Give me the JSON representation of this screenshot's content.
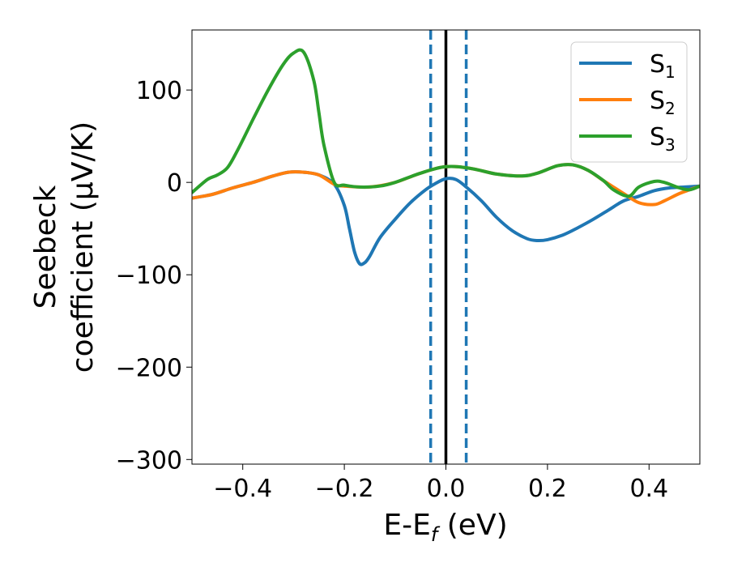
{
  "chart_data": {
    "type": "line",
    "xlabel_main": "E-E",
    "xlabel_sub": "f",
    "xlabel_unit": " (eV)",
    "ylabel_line1": "Seebeck",
    "ylabel_line2": "coefficient  (μV/K)",
    "xlim": [
      -0.5,
      0.5
    ],
    "ylim": [
      -305,
      165
    ],
    "x_ticks": [
      -0.4,
      -0.2,
      0.0,
      0.2,
      0.4
    ],
    "x_tick_labels": [
      "−0.4",
      "−0.2",
      "0.0",
      "0.2",
      "0.4"
    ],
    "y_ticks": [
      -300,
      -200,
      -100,
      0,
      100
    ],
    "y_tick_labels": [
      "−300",
      "−200",
      "−100",
      "0",
      "100"
    ],
    "grid": false,
    "legend_position": "top-right",
    "reference_lines": [
      {
        "x": 0.0,
        "style": "solid",
        "color": "#000000"
      },
      {
        "x": -0.03,
        "style": "dashed",
        "color": "#1f77b4"
      },
      {
        "x": 0.04,
        "style": "dashed",
        "color": "#1f77b4"
      }
    ],
    "series": [
      {
        "name": "S",
        "sub": "1",
        "color": "#1f77b4",
        "x": [
          -0.5,
          -0.46,
          -0.42,
          -0.38,
          -0.34,
          -0.31,
          -0.28,
          -0.25,
          -0.22,
          -0.2,
          -0.19,
          -0.18,
          -0.17,
          -0.16,
          -0.15,
          -0.13,
          -0.1,
          -0.07,
          -0.04,
          -0.02,
          0.0,
          0.02,
          0.04,
          0.07,
          0.1,
          0.13,
          0.16,
          0.18,
          0.2,
          0.23,
          0.26,
          0.29,
          0.32,
          0.35,
          0.38,
          0.41,
          0.44,
          0.47,
          0.5
        ],
        "y": [
          -17,
          -13,
          -6,
          0,
          7,
          11,
          11,
          8,
          -2,
          -25,
          -50,
          -75,
          -88,
          -87,
          -80,
          -60,
          -40,
          -22,
          -8,
          -1,
          4,
          3,
          -5,
          -20,
          -38,
          -52,
          -61,
          -63,
          -62,
          -57,
          -49,
          -40,
          -30,
          -20,
          -15,
          -9,
          -6,
          -5,
          -4
        ]
      },
      {
        "name": "S",
        "sub": "2",
        "color": "#ff7f0e",
        "x": [
          -0.5,
          -0.46,
          -0.42,
          -0.38,
          -0.34,
          -0.31,
          -0.28,
          -0.25,
          -0.22,
          -0.2,
          -0.15,
          -0.1,
          -0.05,
          0.0,
          0.05,
          0.1,
          0.15,
          0.18,
          0.22,
          0.25,
          0.28,
          0.31,
          0.35,
          0.38,
          0.41,
          0.43,
          0.46,
          0.48,
          0.5
        ],
        "y": [
          -17,
          -13,
          -6,
          0,
          7,
          11,
          11,
          8,
          -2,
          -4,
          -5,
          0,
          10,
          17,
          15,
          9,
          7,
          10,
          18,
          19,
          13,
          2,
          -12,
          -22,
          -24,
          -20,
          -12,
          -8,
          -4
        ]
      },
      {
        "name": "S",
        "sub": "3",
        "color": "#2ca02c",
        "x": [
          -0.5,
          -0.47,
          -0.45,
          -0.43,
          -0.41,
          -0.38,
          -0.35,
          -0.32,
          -0.3,
          -0.28,
          -0.26,
          -0.25,
          -0.24,
          -0.22,
          -0.2,
          -0.17,
          -0.13,
          -0.1,
          -0.05,
          0.0,
          0.05,
          0.1,
          0.15,
          0.18,
          0.22,
          0.25,
          0.28,
          0.31,
          0.33,
          0.36,
          0.38,
          0.41,
          0.43,
          0.46,
          0.48,
          0.5
        ],
        "y": [
          -11,
          3,
          8,
          16,
          35,
          68,
          100,
          128,
          140,
          141,
          110,
          75,
          40,
          0,
          -3,
          -5,
          -4,
          0,
          10,
          17,
          15,
          9,
          7,
          10,
          18,
          19,
          13,
          2,
          -8,
          -15,
          -5,
          1,
          0,
          -6,
          -8,
          -4
        ]
      }
    ]
  }
}
